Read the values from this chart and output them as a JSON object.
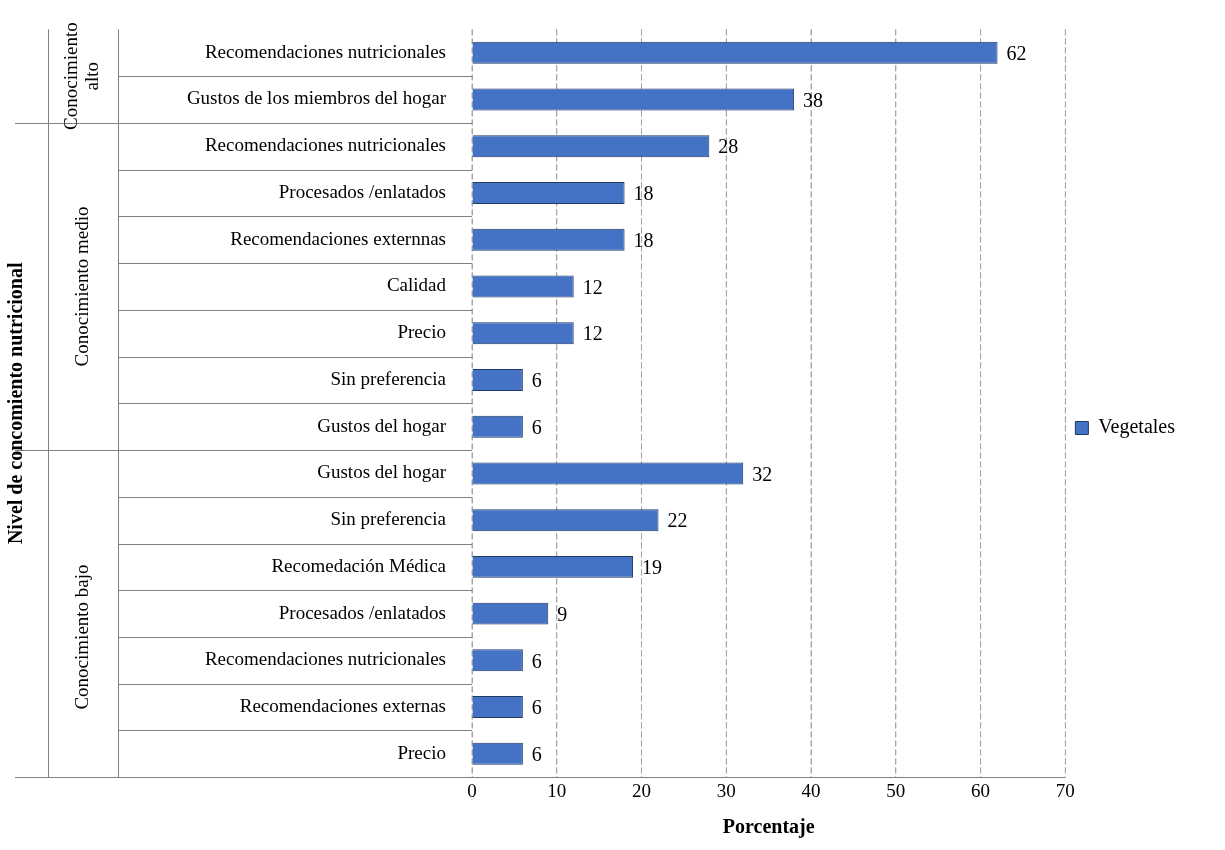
{
  "chart_data": {
    "type": "bar",
    "orientation": "horizontal",
    "xlabel": "Porcentaje",
    "categories": [
      "Recomendaciones nutricionales",
      "Gustos de los miembros del hogar",
      "Recomendaciones nutricionales",
      "Procesados /enlatados",
      "Recomendaciones externnas",
      "Calidad",
      "Precio",
      "Sin preferencia",
      "Gustos del hogar",
      "Gustos del hogar",
      "Sin preferencia",
      "Recomedación Médica",
      "Procesados /enlatados",
      "Recomendaciones nutricionales",
      "Recomendaciones externas",
      "Precio"
    ],
    "series": [
      {
        "name": "Vegetales",
        "color": "#4472c4",
        "values": [
          62,
          38,
          28,
          18,
          18,
          12,
          12,
          6,
          6,
          32,
          22,
          19,
          9,
          6,
          6,
          6
        ]
      }
    ],
    "xlim": [
      0,
      70
    ],
    "xticks": [
      0,
      10,
      20,
      30,
      40,
      50,
      60,
      70
    ],
    "grid": "x",
    "legend": "right",
    "data_labels": true,
    "annotations": [
      "Conocimiento alto",
      "Conocimiento medio",
      "Conocimiento bajo",
      "Nivel de concomiento nutricional"
    ]
  }
}
